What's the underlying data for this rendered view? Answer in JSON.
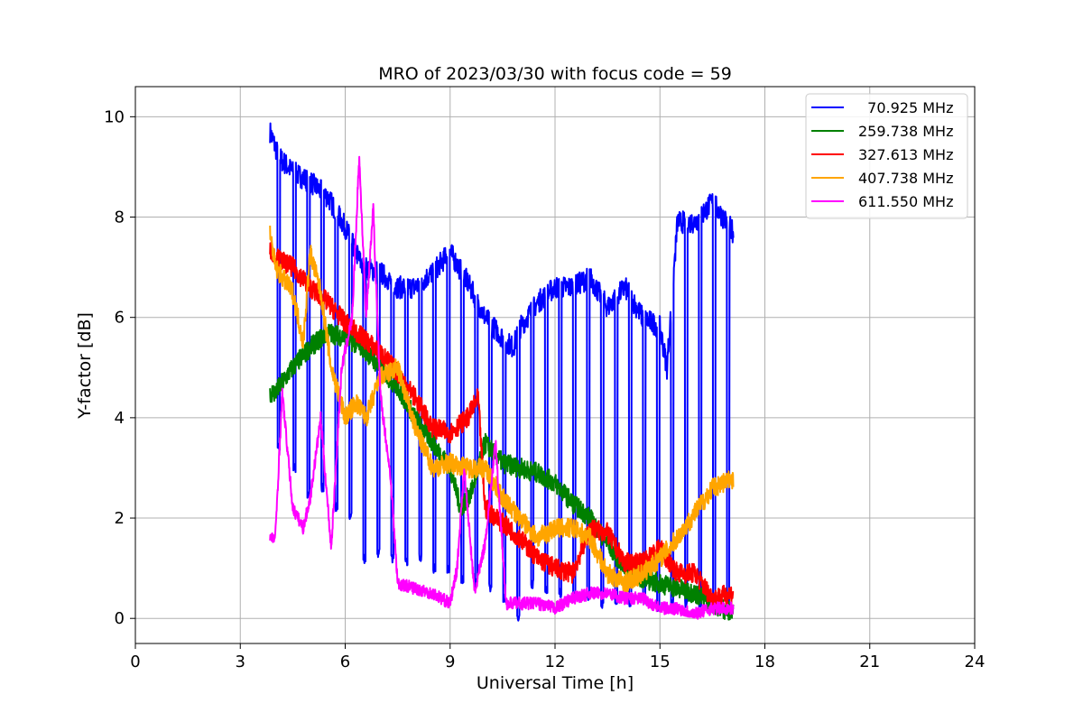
{
  "chart_data": {
    "type": "line",
    "title": "MRO of 2023/03/30 with focus code = 59",
    "xlabel": "Universal Time [h]",
    "ylabel": "Y-factor [dB]",
    "xlim": [
      0,
      24
    ],
    "ylim": [
      -0.5,
      10.6
    ],
    "xticks": [
      0,
      3,
      6,
      9,
      12,
      15,
      18,
      21,
      24
    ],
    "yticks": [
      0,
      2,
      4,
      6,
      8,
      10
    ],
    "grid": true,
    "legend_position": "top-right",
    "series": [
      {
        "name": "  70.925 MHz",
        "color": "#0000ff",
        "style": "dip-pulses",
        "baseline": {
          "x": [
            3.85,
            4.1,
            4.5,
            5.0,
            5.5,
            6.0,
            6.5,
            7.0,
            7.5,
            8.0,
            8.5,
            9.0,
            9.5,
            10.0,
            10.5,
            10.8,
            11.0,
            11.5,
            12.0,
            12.5,
            13.0,
            13.5,
            14.0,
            14.5,
            15.0,
            15.2,
            15.5,
            16.0,
            16.5,
            17.1
          ],
          "y": [
            9.7,
            9.2,
            8.9,
            8.7,
            8.4,
            7.8,
            7.0,
            6.9,
            6.6,
            6.6,
            6.9,
            7.3,
            6.7,
            6.0,
            5.6,
            5.4,
            5.8,
            6.3,
            6.6,
            6.6,
            6.8,
            6.2,
            6.6,
            6.0,
            5.8,
            5.0,
            7.9,
            7.9,
            8.3,
            7.7
          ]
        },
        "dips": {
          "x": [
            4.1,
            4.55,
            4.95,
            5.35,
            5.75,
            6.15,
            6.55,
            6.95,
            7.35,
            7.75,
            8.15,
            8.55,
            8.95,
            9.35,
            9.75,
            10.15,
            10.55,
            10.95,
            11.35,
            11.75,
            12.15,
            12.55,
            12.95,
            13.35,
            13.75,
            14.15,
            14.55,
            14.95,
            15.35,
            15.75,
            16.15,
            16.55,
            16.95
          ],
          "y": [
            3.4,
            3.0,
            2.5,
            2.6,
            2.2,
            2.0,
            1.2,
            1.3,
            1.2,
            1.1,
            1.2,
            1.0,
            1.0,
            0.8,
            0.7,
            0.6,
            0.4,
            0.0,
            0.7,
            0.6,
            0.5,
            0.4,
            0.4,
            0.3,
            0.3,
            0.3,
            0.3,
            0.2,
            0.3,
            0.3,
            0.3,
            0.3,
            0.3
          ]
        }
      },
      {
        "name": "259.738 MHz",
        "color": "#008000",
        "style": "noisy-line",
        "x": [
          3.85,
          4.0,
          4.5,
          5.0,
          5.5,
          6.0,
          6.5,
          7.0,
          7.5,
          8.0,
          8.5,
          9.0,
          9.3,
          9.6,
          10.0,
          10.5,
          11.0,
          11.5,
          12.0,
          12.5,
          13.0,
          13.5,
          14.0,
          14.5,
          15.0,
          15.5,
          16.0,
          16.5,
          17.1
        ],
        "y": [
          4.5,
          4.5,
          5.0,
          5.4,
          5.7,
          5.6,
          5.4,
          5.0,
          4.6,
          4.0,
          3.5,
          3.0,
          2.2,
          2.5,
          3.5,
          3.1,
          3.0,
          2.9,
          2.7,
          2.3,
          2.0,
          1.5,
          1.0,
          0.8,
          0.7,
          0.6,
          0.5,
          0.3,
          0.1
        ]
      },
      {
        "name": "327.613 MHz",
        "color": "#ff0000",
        "style": "noisy-line",
        "x": [
          3.85,
          4.0,
          4.5,
          5.0,
          5.5,
          6.0,
          6.5,
          7.0,
          7.5,
          8.0,
          8.5,
          9.0,
          9.5,
          9.8,
          10.0,
          10.5,
          11.0,
          11.5,
          12.0,
          12.5,
          13.0,
          13.5,
          14.0,
          14.5,
          15.0,
          15.5,
          16.0,
          16.5,
          17.1
        ],
        "y": [
          7.4,
          7.2,
          7.0,
          6.6,
          6.3,
          5.9,
          5.6,
          5.3,
          4.9,
          4.4,
          3.8,
          3.7,
          4.0,
          4.4,
          2.2,
          1.9,
          1.6,
          1.2,
          1.0,
          0.9,
          1.8,
          1.7,
          1.1,
          1.1,
          1.4,
          0.9,
          0.9,
          0.4,
          0.5
        ]
      },
      {
        "name": "407.738 MHz",
        "color": "#ffa500",
        "style": "noisy-line",
        "x": [
          3.85,
          4.0,
          4.5,
          4.8,
          5.0,
          5.3,
          5.6,
          6.0,
          6.3,
          6.6,
          7.0,
          7.5,
          8.0,
          8.5,
          9.0,
          9.5,
          10.0,
          10.5,
          11.0,
          11.5,
          12.0,
          12.5,
          13.0,
          13.5,
          14.0,
          14.5,
          15.0,
          15.5,
          16.0,
          16.5,
          17.1
        ],
        "y": [
          7.7,
          7.0,
          6.5,
          5.5,
          7.3,
          6.5,
          5.0,
          4.0,
          4.3,
          4.0,
          4.8,
          5.0,
          3.8,
          3.0,
          3.1,
          3.0,
          3.0,
          2.4,
          2.0,
          1.6,
          1.8,
          1.8,
          1.6,
          0.9,
          0.7,
          0.9,
          1.2,
          1.6,
          2.1,
          2.6,
          2.8
        ]
      },
      {
        "name": "611.550 MHz",
        "color": "#ff00ff",
        "style": "noisy-line",
        "x": [
          3.85,
          4.0,
          4.2,
          4.5,
          4.8,
          5.0,
          5.3,
          5.6,
          5.9,
          6.2,
          6.4,
          6.6,
          6.8,
          7.0,
          7.3,
          7.5,
          8.0,
          8.5,
          9.0,
          9.2,
          9.4,
          9.7,
          10.0,
          10.3,
          10.6,
          11.0,
          11.5,
          12.0,
          12.5,
          13.0,
          13.5,
          14.0,
          14.5,
          15.0,
          15.5,
          16.0,
          16.5,
          17.1
        ],
        "y": [
          1.6,
          1.6,
          4.5,
          2.2,
          1.8,
          2.4,
          4.0,
          1.4,
          5.0,
          6.0,
          9.2,
          6.0,
          8.2,
          4.5,
          2.8,
          0.7,
          0.6,
          0.5,
          0.3,
          1.0,
          3.0,
          0.5,
          1.5,
          3.5,
          0.3,
          0.3,
          0.3,
          0.2,
          0.4,
          0.5,
          0.5,
          0.4,
          0.4,
          0.2,
          0.2,
          0.1,
          0.2,
          0.2
        ]
      }
    ]
  }
}
